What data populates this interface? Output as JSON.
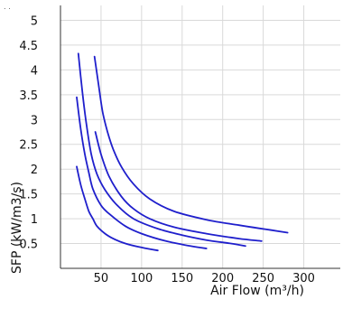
{
  "chart_data": {
    "type": "line",
    "title": "",
    "corner_mark": ". .",
    "xlabel": "Air Flow (m³/h)",
    "ylabel": "SFP (kW/m3/s)",
    "xlim": [
      0,
      345
    ],
    "ylim": [
      0,
      5.3
    ],
    "x_ticks": [
      50,
      100,
      150,
      200,
      250,
      300
    ],
    "y_ticks": [
      0.5,
      1,
      1.5,
      2,
      2.5,
      3,
      3.5,
      4,
      4.5,
      5
    ],
    "grid": true,
    "line_color": "#1f1fcc",
    "grid_color": "#d9d9d9",
    "series": [
      {
        "x": [
          20,
          25,
          30,
          35,
          40,
          45,
          55,
          65,
          80,
          100,
          120
        ],
        "y": [
          2.05,
          1.68,
          1.4,
          1.15,
          1.0,
          0.85,
          0.7,
          0.6,
          0.5,
          0.42,
          0.36
        ]
      },
      {
        "x": [
          20,
          25,
          30,
          35,
          40,
          50,
          60,
          80,
          100,
          130,
          160,
          180
        ],
        "y": [
          3.45,
          2.8,
          2.3,
          1.93,
          1.6,
          1.27,
          1.1,
          0.85,
          0.7,
          0.55,
          0.45,
          0.4
        ]
      },
      {
        "x": [
          22,
          27,
          32,
          38,
          45,
          55,
          70,
          90,
          120,
          150,
          180,
          210,
          228
        ],
        "y": [
          4.33,
          3.55,
          2.9,
          2.3,
          1.9,
          1.58,
          1.27,
          1.0,
          0.8,
          0.67,
          0.57,
          0.5,
          0.45
        ]
      },
      {
        "x": [
          43,
          50,
          60,
          75,
          90,
          110,
          140,
          180,
          220,
          248
        ],
        "y": [
          2.75,
          2.3,
          1.85,
          1.45,
          1.2,
          1.0,
          0.83,
          0.7,
          0.6,
          0.55
        ]
      },
      {
        "x": [
          42,
          47,
          52,
          58,
          65,
          75,
          90,
          110,
          140,
          180,
          220,
          260,
          280
        ],
        "y": [
          4.27,
          3.7,
          3.15,
          2.75,
          2.4,
          2.05,
          1.7,
          1.4,
          1.15,
          0.98,
          0.87,
          0.77,
          0.72
        ]
      }
    ]
  }
}
